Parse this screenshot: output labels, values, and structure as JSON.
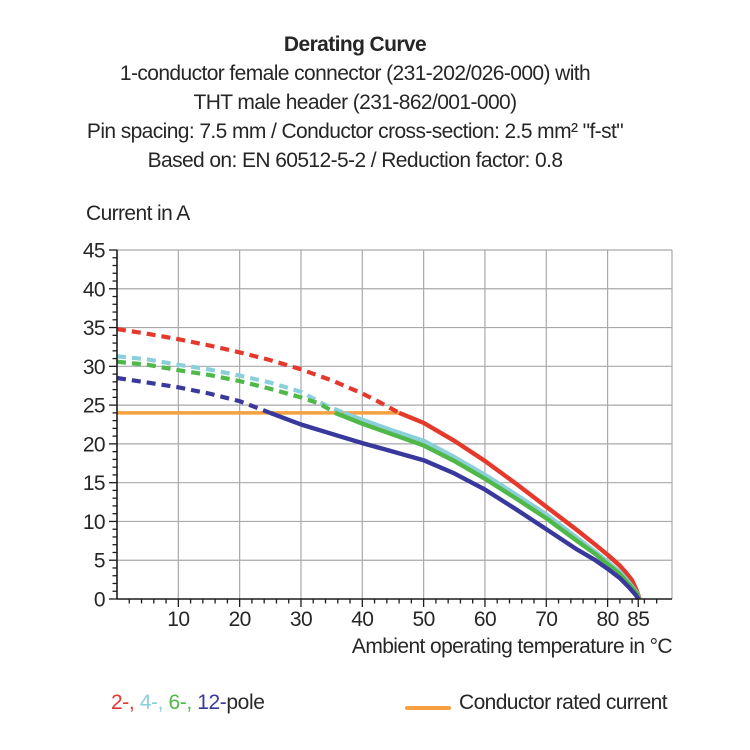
{
  "title_block": {
    "title": "Derating Curve",
    "lines": [
      "1-conductor female connector (231-202/026-000) with",
      "THT male header (231-862/001-000)",
      "Pin spacing: 7.5 mm / Conductor cross-section: 2.5 mm² \"f-st\"",
      "Based on: EN 60512-5-2 / Reduction factor: 0.8"
    ]
  },
  "chart_data": {
    "type": "line",
    "y_axis_label": "Current in A",
    "x_axis_label": "Ambient operating temperature in °C",
    "xlim": [
      0,
      90.5
    ],
    "ylim": [
      0,
      45
    ],
    "x_ticks": [
      10,
      20,
      30,
      40,
      50,
      60,
      70,
      80,
      85
    ],
    "y_ticks": [
      0,
      5,
      10,
      15,
      20,
      25,
      30,
      35,
      40,
      45
    ],
    "x_minor_step": 2,
    "y_minor_step": 1,
    "grid": true,
    "grid_color": "#a9a9ad",
    "axis_color": "#1c1c1c",
    "legend_position": "bottom",
    "rated_current_line": {
      "label": "Conductor rated current",
      "value": 24,
      "x_start": 0,
      "x_end": 46,
      "color": "#f6a03f"
    },
    "series": [
      {
        "name": "2-pole",
        "color": "#e5392c",
        "solid_from": 46,
        "points": [
          [
            0,
            34.8
          ],
          [
            5,
            34.2
          ],
          [
            10,
            33.5
          ],
          [
            15,
            32.7
          ],
          [
            20,
            31.8
          ],
          [
            25,
            30.8
          ],
          [
            30,
            29.6
          ],
          [
            35,
            28.2
          ],
          [
            40,
            26.5
          ],
          [
            43,
            25.3
          ],
          [
            46,
            24
          ],
          [
            50,
            22.7
          ],
          [
            55,
            20.4
          ],
          [
            60,
            17.8
          ],
          [
            65,
            14.9
          ],
          [
            70,
            11.9
          ],
          [
            75,
            8.9
          ],
          [
            78,
            7.0
          ],
          [
            80,
            5.7
          ],
          [
            82,
            4.3
          ],
          [
            83,
            3.4
          ],
          [
            84,
            2.4
          ],
          [
            84.8,
            1.0
          ],
          [
            85.2,
            0
          ]
        ]
      },
      {
        "name": "4-pole",
        "color": "#8bcfda",
        "solid_from": 37,
        "points": [
          [
            0,
            31.3
          ],
          [
            5,
            30.9
          ],
          [
            10,
            30.2
          ],
          [
            15,
            29.6
          ],
          [
            20,
            28.8
          ],
          [
            25,
            27.9
          ],
          [
            30,
            26.7
          ],
          [
            34,
            25.0
          ],
          [
            37,
            24
          ],
          [
            40,
            23.1
          ],
          [
            45,
            21.7
          ],
          [
            50,
            20.4
          ],
          [
            55,
            18.3
          ],
          [
            60,
            16.0
          ],
          [
            65,
            13.5
          ],
          [
            70,
            10.9
          ],
          [
            75,
            7.9
          ],
          [
            78,
            6.1
          ],
          [
            80,
            4.8
          ],
          [
            82,
            3.5
          ],
          [
            83.5,
            2.1
          ],
          [
            84.8,
            0.8
          ],
          [
            85.1,
            0
          ]
        ]
      },
      {
        "name": "6-pole",
        "color": "#50b848",
        "solid_from": 35.6,
        "points": [
          [
            0,
            30.6
          ],
          [
            5,
            30.2
          ],
          [
            10,
            29.5
          ],
          [
            15,
            28.9
          ],
          [
            20,
            28.1
          ],
          [
            25,
            27.1
          ],
          [
            30,
            26.0
          ],
          [
            33,
            25.2
          ],
          [
            35.6,
            24
          ],
          [
            40,
            22.6
          ],
          [
            45,
            21.2
          ],
          [
            50,
            19.8
          ],
          [
            55,
            17.8
          ],
          [
            60,
            15.5
          ],
          [
            65,
            13.0
          ],
          [
            70,
            10.4
          ],
          [
            75,
            7.5
          ],
          [
            78,
            5.8
          ],
          [
            80,
            4.5
          ],
          [
            82,
            3.2
          ],
          [
            83.5,
            1.9
          ],
          [
            84.8,
            0.7
          ],
          [
            85.1,
            0
          ]
        ]
      },
      {
        "name": "12-pole",
        "color": "#39389c",
        "solid_from": 25,
        "points": [
          [
            0,
            28.5
          ],
          [
            5,
            27.9
          ],
          [
            10,
            27.3
          ],
          [
            15,
            26.5
          ],
          [
            20,
            25.5
          ],
          [
            25,
            24
          ],
          [
            30,
            22.5
          ],
          [
            35,
            21.3
          ],
          [
            40,
            20.1
          ],
          [
            45,
            19.0
          ],
          [
            50,
            17.9
          ],
          [
            55,
            16.2
          ],
          [
            60,
            14.1
          ],
          [
            65,
            11.6
          ],
          [
            70,
            9.0
          ],
          [
            75,
            6.4
          ],
          [
            78,
            5.0
          ],
          [
            80,
            3.9
          ],
          [
            82,
            2.7
          ],
          [
            83.5,
            1.5
          ],
          [
            84.6,
            0.5
          ],
          [
            85,
            0
          ]
        ]
      }
    ]
  },
  "legend": {
    "pole_items": [
      {
        "text": "2-, ",
        "color": "#e5392c"
      },
      {
        "text": "4-, ",
        "color": "#8bcfda"
      },
      {
        "text": "6-, ",
        "color": "#50b848"
      },
      {
        "text": "12-",
        "color": "#39389c"
      },
      {
        "text": "pole",
        "color": "#2a2a2a"
      }
    ],
    "rated_label": "Conductor rated current",
    "rated_color": "#f6a03f"
  }
}
